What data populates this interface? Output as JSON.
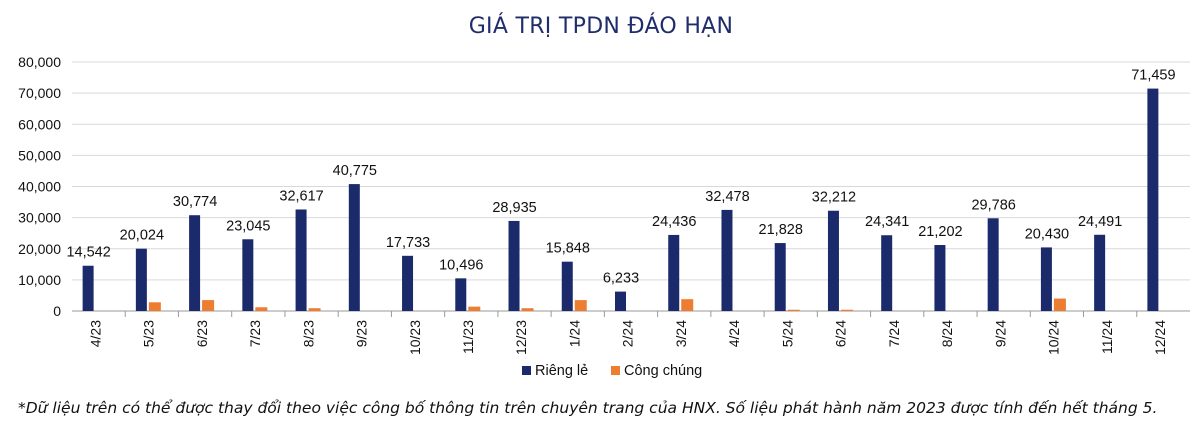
{
  "chart_data": {
    "type": "bar",
    "title": "GIÁ TRỊ TPDN ĐÁO HẠN",
    "categories": [
      "4/23",
      "5/23",
      "6/23",
      "7/23",
      "8/23",
      "9/23",
      "10/23",
      "11/23",
      "12/23",
      "1/24",
      "2/24",
      "3/24",
      "4/24",
      "5/24",
      "6/24",
      "7/24",
      "8/24",
      "9/24",
      "10/24",
      "11/24",
      "12/24"
    ],
    "series": [
      {
        "name": "Riêng lẻ",
        "color": "#1b2a6b",
        "values": [
          14542,
          20024,
          30774,
          23045,
          32617,
          40775,
          17733,
          10496,
          28935,
          15848,
          6233,
          24436,
          32478,
          21828,
          32212,
          24341,
          21202,
          29786,
          20430,
          24491,
          71459
        ],
        "labels": [
          "14,542",
          "20,024",
          "30,774",
          "23,045",
          "32,617",
          "40,775",
          "17,733",
          "10,496",
          "28,935",
          "15,848",
          "6,233",
          "24,436",
          "32,478",
          "21,828",
          "32,212",
          "24,341",
          "21,202",
          "29,786",
          "20,430",
          "24,491",
          "71,459"
        ]
      },
      {
        "name": "Công chúng",
        "color": "#ed7d31",
        "values": [
          0,
          2800,
          3500,
          1200,
          900,
          0,
          0,
          1400,
          900,
          3500,
          0,
          3800,
          0,
          400,
          400,
          0,
          0,
          0,
          4000,
          0,
          0
        ]
      }
    ],
    "yticks": [
      "0",
      "10,000",
      "20,000",
      "30,000",
      "40,000",
      "50,000",
      "60,000",
      "70,000",
      "80,000"
    ],
    "ylim": [
      0,
      80000
    ],
    "grid": true,
    "legend": "bottom"
  },
  "footnote": "*Dữ liệu trên có thể được thay đổi theo việc công bố thông tin trên chuyên trang của HNX. Số liệu phát hành năm 2023 được tính đến hết tháng 5."
}
